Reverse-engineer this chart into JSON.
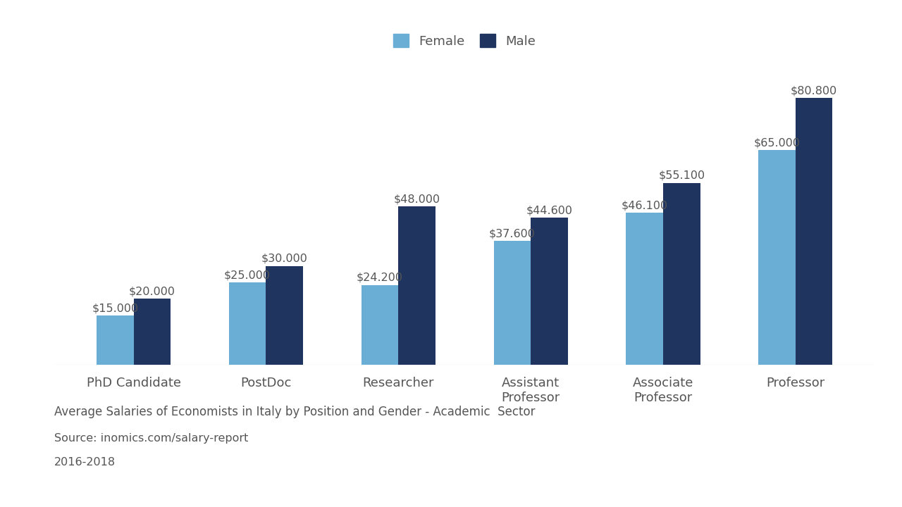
{
  "categories": [
    "PhD Candidate",
    "PostDoc",
    "Researcher",
    "Assistant\nProfessor",
    "Associate\nProfessor",
    "Professor"
  ],
  "female_values": [
    15000,
    25000,
    24200,
    37600,
    46100,
    65000
  ],
  "male_values": [
    20000,
    30000,
    48000,
    44600,
    55100,
    80800
  ],
  "female_color": "#6aaed6",
  "male_color": "#1f3560",
  "female_label": "Female",
  "male_label": "Male",
  "label_color": "#555555",
  "axis_color": "#bbbbbb",
  "background_color": "#ffffff",
  "footer_line1": "Average Salaries of Economists in Italy by Position and Gender - Academic  Sector",
  "footer_line2": "Source: inomics.com/salary-report",
  "footer_line3": "2016-2018",
  "bar_width": 0.28,
  "ylim": [
    0,
    92000
  ]
}
